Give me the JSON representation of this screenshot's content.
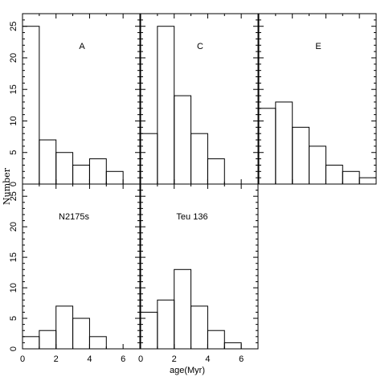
{
  "chart_data": {
    "type": "bar",
    "ylabel": "Number",
    "xlabel": "age(Myr)",
    "bin_width": 1,
    "xlim": [
      0,
      7
    ],
    "ylim": [
      0,
      27
    ],
    "xticks": [
      0,
      2,
      4,
      6
    ],
    "yticks": [
      0,
      5,
      10,
      15,
      20,
      25
    ],
    "panels": [
      {
        "label": "A",
        "bin_starts": [
          0,
          1,
          2,
          3,
          4,
          5
        ],
        "counts": [
          25,
          7,
          5,
          3,
          4,
          2
        ]
      },
      {
        "label": "C",
        "bin_starts": [
          0,
          1,
          2,
          3,
          4
        ],
        "counts": [
          8,
          25,
          14,
          8,
          4
        ]
      },
      {
        "label": "E",
        "bin_starts": [
          0,
          1,
          2,
          3,
          4,
          5,
          6
        ],
        "counts": [
          12,
          13,
          9,
          6,
          3,
          2,
          1
        ]
      },
      {
        "label": "N2175s",
        "bin_starts": [
          0,
          1,
          2,
          3,
          4
        ],
        "counts": [
          2,
          3,
          7,
          5,
          2
        ]
      },
      {
        "label": "Teu 136",
        "bin_starts": [
          0,
          1,
          2,
          3,
          4,
          5
        ],
        "counts": [
          6,
          8,
          13,
          7,
          3,
          1
        ]
      }
    ]
  }
}
